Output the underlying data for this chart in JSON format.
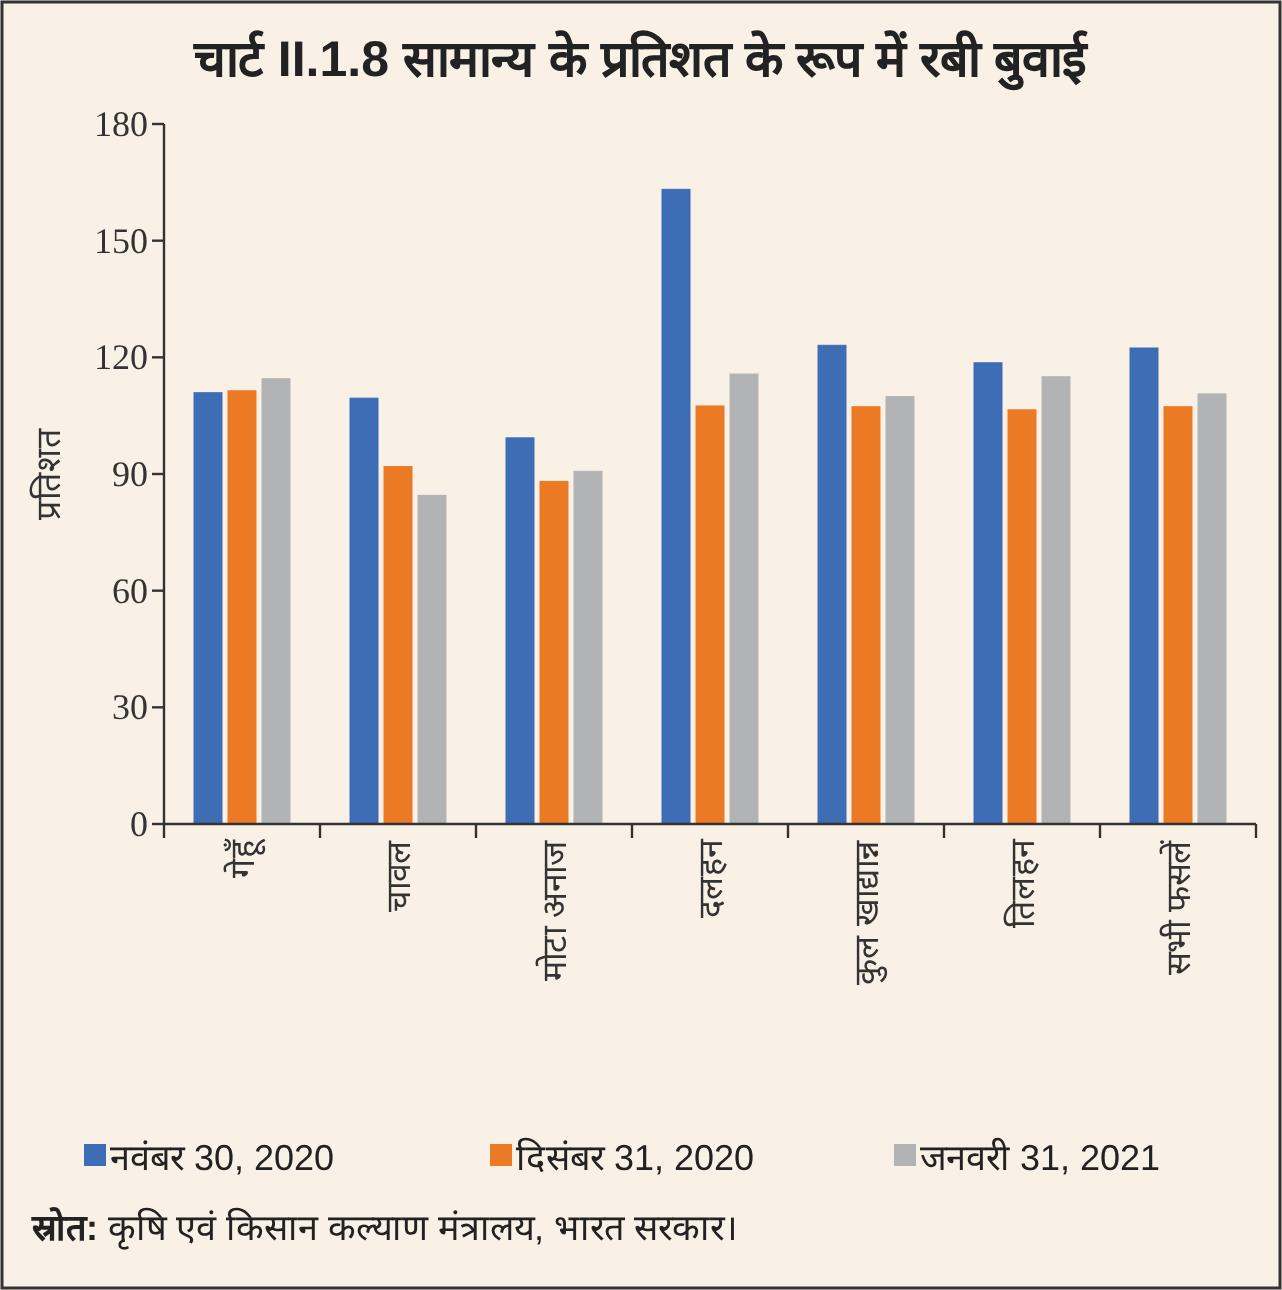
{
  "chart_data": {
    "type": "bar",
    "title": "चार्ट II.1.8 सामान्य के प्रतिशत के रूप में रबी बुवाई",
    "ylabel": "प्रतिशत",
    "categories": [
      "गेहूँ",
      "चावल",
      "मोटा अनाज",
      "दलहन",
      "कुल खाद्यान्न",
      "तिलहन",
      "सभी फसलें"
    ],
    "series": [
      {
        "name": "नवंबर 30, 2020",
        "color": "#3d6db5",
        "values": [
          110.9,
          109.5,
          99.3,
          163.2,
          123.1,
          118.6,
          122.4
        ]
      },
      {
        "name": "दिसंबर 31, 2020",
        "color": "#ec7a25",
        "values": [
          111.4,
          91.9,
          88.1,
          107.5,
          107.3,
          106.5,
          107.3
        ]
      },
      {
        "name": "जनवरी 31, 2021",
        "color": "#b2b3b5",
        "values": [
          114.5,
          84.5,
          90.7,
          115.7,
          109.9,
          115.0,
          110.6
        ]
      }
    ],
    "ylim": [
      0,
      180
    ],
    "yticks": [
      0,
      30,
      60,
      90,
      120,
      150,
      180
    ],
    "grid": false,
    "legend": "bottom",
    "annotations": [
      "**स्रोत:** कृषि एवं किसान कल्याण मंत्रालय, भारत सरकार।"
    ]
  }
}
